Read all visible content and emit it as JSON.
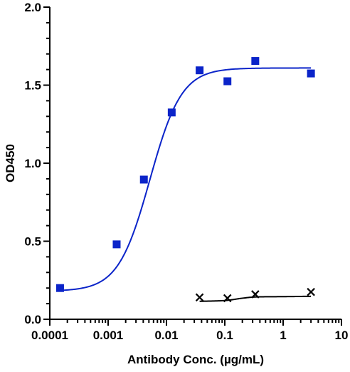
{
  "chart_data": {
    "type": "scatter",
    "xlabel": "Antibody Conc. (µg/mL)",
    "ylabel": "OD450",
    "xscale": "log",
    "xlim": [
      0.0001,
      10
    ],
    "ylim": [
      0,
      2
    ],
    "x_ticks": [
      0.0001,
      0.001,
      0.01,
      0.1,
      1,
      10
    ],
    "x_tick_labels": [
      "0.0001",
      "0.001",
      "0.01",
      "0.1",
      "1",
      "10"
    ],
    "y_ticks": [
      0,
      0.5,
      1,
      1.5,
      2
    ],
    "y_tick_labels": [
      "0.0",
      "0.5",
      "1.0",
      "1.5",
      "2.0"
    ],
    "grid": false,
    "legend": "none",
    "series": [
      {
        "marker": "square",
        "color": "#0b24c9",
        "x": [
          0.00015,
          0.0014,
          0.0041,
          0.0123,
          0.037,
          0.111,
          0.333,
          3.0
        ],
        "y": [
          0.2,
          0.48,
          0.895,
          1.325,
          1.595,
          1.525,
          1.655,
          1.575
        ],
        "fit": {
          "model": "4PL",
          "bottom": 0.18,
          "top": 1.61,
          "ec50": 0.0052,
          "hill": 1.6
        }
      },
      {
        "marker": "x",
        "color": "#000000",
        "x": [
          0.037,
          0.111,
          0.333,
          3.0
        ],
        "y": [
          0.14,
          0.135,
          0.16,
          0.175
        ],
        "fit": {
          "x": [
            0.037,
            0.1,
            0.2,
            0.35,
            1.0,
            3.0
          ],
          "y": [
            0.115,
            0.12,
            0.135,
            0.143,
            0.145,
            0.147
          ]
        }
      }
    ]
  }
}
